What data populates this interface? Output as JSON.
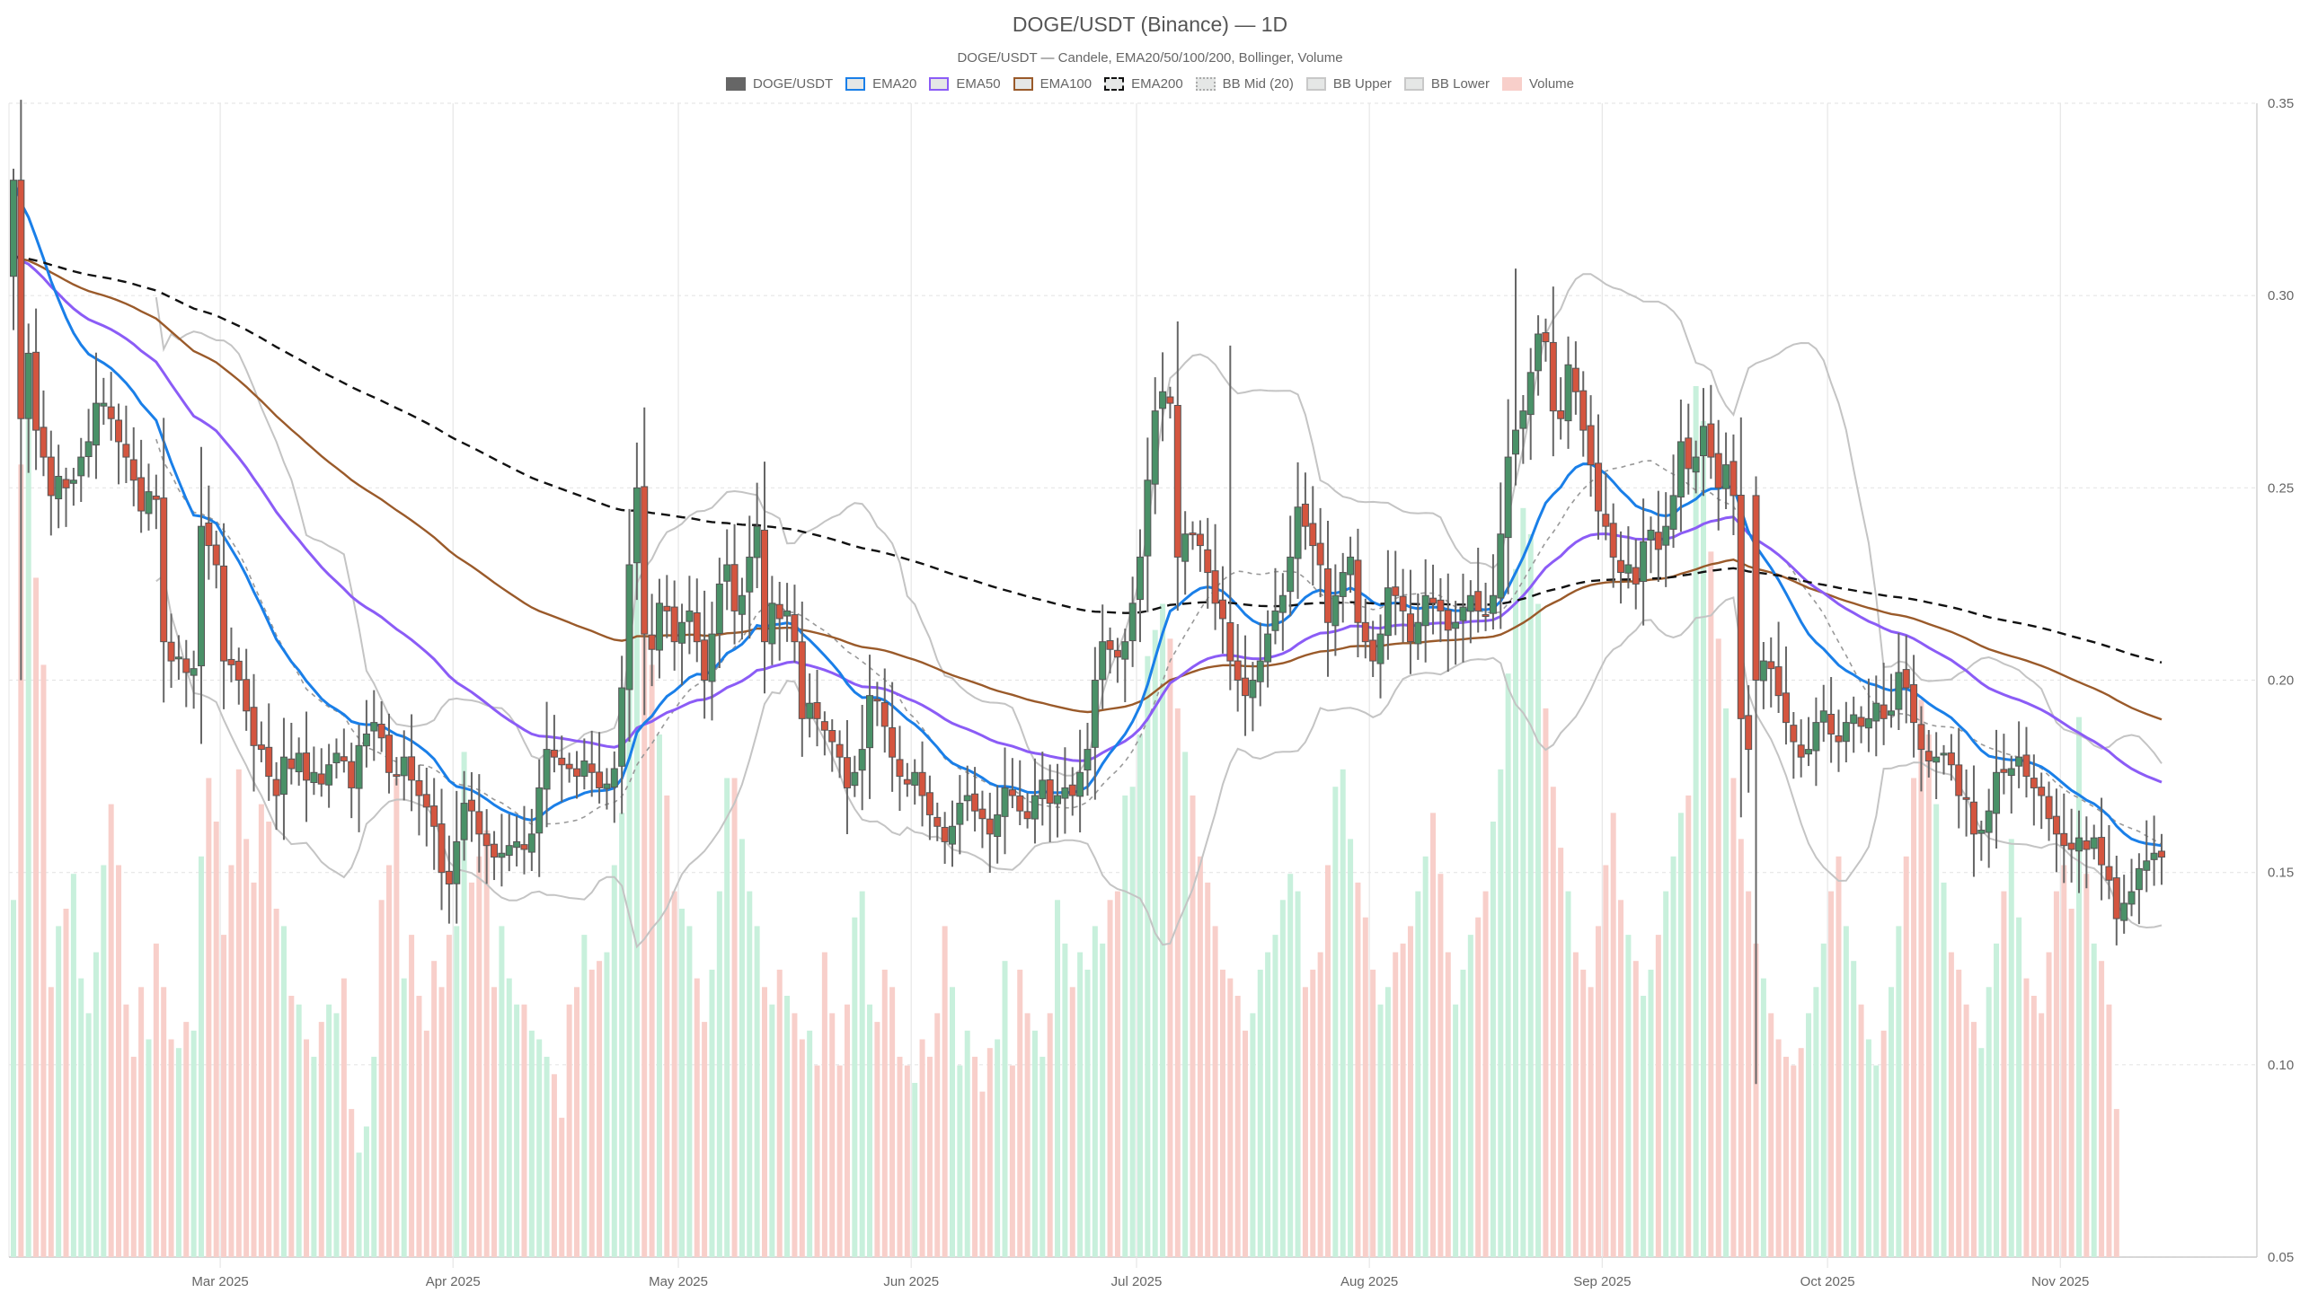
{
  "header": {
    "title": "DOGE/USDT (Binance) — 1D",
    "subtitle": "DOGE/USDT — Candele, EMA20/50/100/200, Bollinger, Volume"
  },
  "legend": [
    {
      "label": "DOGE/USDT",
      "fill": "#666666",
      "border": "#666666",
      "style": "solid"
    },
    {
      "label": "EMA20",
      "fill": "#e5e7e6",
      "border": "#1a7fe8",
      "style": "solid"
    },
    {
      "label": "EMA50",
      "fill": "#e5e7e6",
      "border": "#8b5cf6",
      "style": "solid"
    },
    {
      "label": "EMA100",
      "fill": "#e5e7e6",
      "border": "#9a5a2a",
      "style": "solid"
    },
    {
      "label": "EMA200",
      "fill": "#e5e7e6",
      "border": "#111111",
      "style": "dashed"
    },
    {
      "label": "BB Mid (20)",
      "fill": "#e5e7e6",
      "border": "#aaaaaa",
      "style": "dotted"
    },
    {
      "label": "BB Upper",
      "fill": "#e5e7e6",
      "border": "#c8c8c8",
      "style": "solid"
    },
    {
      "label": "BB Lower",
      "fill": "#e5e7e6",
      "border": "#c8c8c8",
      "style": "solid"
    },
    {
      "label": "Volume",
      "fill": "#f8cfca",
      "border": "#f8cfca",
      "style": "solid"
    }
  ],
  "colors": {
    "up": "#4a9168",
    "down": "#d4553f",
    "wick": "#666666",
    "vol_up": "#c8f0dc",
    "vol_down": "#f8cfca",
    "ema20": "#1a7fe8",
    "ema50": "#8b5cf6",
    "ema100": "#9a5a2a",
    "ema200": "#111111",
    "bb_mid": "#999999",
    "bb_band": "#c4c4c4",
    "grid": "#e6e6e6"
  },
  "chart_data": {
    "type": "candlestick",
    "title": "DOGE/USDT (Binance) — 1D",
    "subtitle": "DOGE/USDT — Candele, EMA20/50/100/200, Bollinger, Volume",
    "xlabel": "",
    "ylabel": "",
    "ylim": [
      0.05,
      0.35
    ],
    "y_ticks": [
      "0.35",
      "0.30",
      "0.25",
      "0.20",
      "0.15",
      "0.10",
      "0.05"
    ],
    "x_ticks": [
      "Mar 2025",
      "Apr 2025",
      "May 2025",
      "Jun 2025",
      "Jul 2025",
      "Aug 2025",
      "Sep 2025",
      "Oct 2025",
      "Nov 2025"
    ],
    "grid": true,
    "legend_position": "top",
    "series": [
      {
        "name": "DOGE/USDT",
        "kind": "candlestick"
      },
      {
        "name": "EMA20",
        "kind": "line"
      },
      {
        "name": "EMA50",
        "kind": "line"
      },
      {
        "name": "EMA100",
        "kind": "line"
      },
      {
        "name": "EMA200",
        "kind": "line"
      },
      {
        "name": "BB Mid (20)",
        "kind": "line"
      },
      {
        "name": "BB Upper",
        "kind": "line"
      },
      {
        "name": "BB Lower",
        "kind": "line"
      },
      {
        "name": "Volume",
        "kind": "bar"
      }
    ],
    "start_date": "2025-02-01",
    "close_path": [
      0.33,
      0.268,
      0.285,
      0.265,
      0.258,
      0.248,
      0.253,
      0.25,
      0.252,
      0.258,
      0.262,
      0.272,
      0.272,
      0.268,
      0.262,
      0.258,
      0.252,
      0.244,
      0.249,
      0.247,
      0.21,
      0.205,
      0.206,
      0.202,
      0.203,
      0.24,
      0.235,
      0.23,
      0.205,
      0.204,
      0.2,
      0.192,
      0.183,
      0.182,
      0.175,
      0.17,
      0.18,
      0.177,
      0.181,
      0.174,
      0.176,
      0.173,
      0.178,
      0.181,
      0.179,
      0.172,
      0.183,
      0.186,
      0.189,
      0.185,
      0.176,
      0.175,
      0.18,
      0.174,
      0.17,
      0.167,
      0.162,
      0.15,
      0.147,
      0.158,
      0.168,
      0.166,
      0.16,
      0.157,
      0.154,
      0.155,
      0.157,
      0.158,
      0.156,
      0.16,
      0.172,
      0.182,
      0.18,
      0.178,
      0.177,
      0.175,
      0.179,
      0.176,
      0.172,
      0.173,
      0.177,
      0.198,
      0.23,
      0.25,
      0.212,
      0.208,
      0.22,
      0.218,
      0.21,
      0.215,
      0.218,
      0.21,
      0.2,
      0.212,
      0.225,
      0.23,
      0.218,
      0.222,
      0.232,
      0.24,
      0.21,
      0.22,
      0.216,
      0.218,
      0.21,
      0.19,
      0.194,
      0.19,
      0.187,
      0.184,
      0.18,
      0.172,
      0.176,
      0.182,
      0.196,
      0.195,
      0.188,
      0.18,
      0.175,
      0.173,
      0.176,
      0.17,
      0.165,
      0.162,
      0.158,
      0.162,
      0.168,
      0.17,
      0.166,
      0.164,
      0.16,
      0.165,
      0.172,
      0.17,
      0.166,
      0.164,
      0.17,
      0.174,
      0.168,
      0.17,
      0.172,
      0.17,
      0.176,
      0.182,
      0.2,
      0.21,
      0.208,
      0.206,
      0.21,
      0.22,
      0.232,
      0.252,
      0.27,
      0.275,
      0.272,
      0.232,
      0.238,
      0.238,
      0.235,
      0.228,
      0.22,
      0.216,
      0.205,
      0.2,
      0.196,
      0.2,
      0.205,
      0.212,
      0.218,
      0.222,
      0.232,
      0.245,
      0.24,
      0.235,
      0.23,
      0.215,
      0.222,
      0.228,
      0.232,
      0.215,
      0.21,
      0.205,
      0.212,
      0.224,
      0.222,
      0.218,
      0.21,
      0.215,
      0.222,
      0.22,
      0.218,
      0.213,
      0.215,
      0.219,
      0.222,
      0.218,
      0.217,
      0.222,
      0.238,
      0.258,
      0.265,
      0.27,
      0.28,
      0.29,
      0.288,
      0.27,
      0.268,
      0.282,
      0.275,
      0.265,
      0.256,
      0.244,
      0.24,
      0.232,
      0.228,
      0.23,
      0.225,
      0.236,
      0.239,
      0.234,
      0.24,
      0.248,
      0.262,
      0.255,
      0.258,
      0.266,
      0.258,
      0.25,
      0.256,
      0.248,
      0.19,
      0.182,
      0.2,
      0.205,
      0.203,
      0.196,
      0.189,
      0.184,
      0.18,
      0.182,
      0.189,
      0.192,
      0.186,
      0.184,
      0.189,
      0.191,
      0.188,
      0.19,
      0.194,
      0.19,
      0.192,
      0.202,
      0.198,
      0.189,
      0.182,
      0.179,
      0.18,
      0.181,
      0.178,
      0.17,
      0.169,
      0.16,
      0.161,
      0.166,
      0.176,
      0.176,
      0.177,
      0.18,
      0.175,
      0.172,
      0.17,
      0.164,
      0.16,
      0.157,
      0.156,
      0.159,
      0.156,
      0.159,
      0.152,
      0.148,
      0.138,
      0.142,
      0.145,
      0.151,
      0.153,
      0.155,
      0.154
    ],
    "volume_relative": [
      0.41,
      0.91,
      0.99,
      0.78,
      0.68,
      0.31,
      0.38,
      0.4,
      0.44,
      0.32,
      0.28,
      0.35,
      0.45,
      0.52,
      0.45,
      0.29,
      0.23,
      0.31,
      0.25,
      0.36,
      0.31,
      0.25,
      0.24,
      0.27,
      0.26,
      0.46,
      0.55,
      0.5,
      0.37,
      0.45,
      0.56,
      0.48,
      0.43,
      0.52,
      0.5,
      0.4,
      0.38,
      0.3,
      0.29,
      0.25,
      0.23,
      0.27,
      0.29,
      0.28,
      0.32,
      0.17,
      0.12,
      0.15,
      0.23,
      0.41,
      0.45,
      0.55,
      0.32,
      0.37,
      0.3,
      0.26,
      0.34,
      0.31,
      0.37,
      0.38,
      0.58,
      0.43,
      0.46,
      0.49,
      0.31,
      0.38,
      0.32,
      0.29,
      0.29,
      0.26,
      0.25,
      0.23,
      0.21,
      0.16,
      0.29,
      0.31,
      0.37,
      0.33,
      0.34,
      0.35,
      0.45,
      0.51,
      0.74,
      0.8,
      0.73,
      0.68,
      0.6,
      0.53,
      0.42,
      0.4,
      0.38,
      0.32,
      0.27,
      0.33,
      0.42,
      0.55,
      0.55,
      0.48,
      0.42,
      0.38,
      0.31,
      0.29,
      0.33,
      0.3,
      0.28,
      0.25,
      0.26,
      0.22,
      0.35,
      0.28,
      0.22,
      0.29,
      0.39,
      0.42,
      0.29,
      0.27,
      0.33,
      0.31,
      0.23,
      0.22,
      0.2,
      0.25,
      0.23,
      0.28,
      0.38,
      0.31,
      0.22,
      0.26,
      0.23,
      0.19,
      0.24,
      0.25,
      0.34,
      0.22,
      0.33,
      0.28,
      0.26,
      0.23,
      0.28,
      0.41,
      0.36,
      0.31,
      0.35,
      0.33,
      0.38,
      0.36,
      0.41,
      0.42,
      0.53,
      0.54,
      0.6,
      0.69,
      0.72,
      0.75,
      0.71,
      0.63,
      0.58,
      0.53,
      0.46,
      0.43,
      0.38,
      0.33,
      0.32,
      0.3,
      0.26,
      0.28,
      0.33,
      0.35,
      0.37,
      0.41,
      0.44,
      0.42,
      0.31,
      0.33,
      0.35,
      0.45,
      0.54,
      0.56,
      0.48,
      0.43,
      0.39,
      0.33,
      0.29,
      0.31,
      0.35,
      0.36,
      0.38,
      0.42,
      0.46,
      0.51,
      0.44,
      0.35,
      0.29,
      0.33,
      0.37,
      0.39,
      0.42,
      0.5,
      0.56,
      0.67,
      0.79,
      0.86,
      0.83,
      0.75,
      0.63,
      0.54,
      0.47,
      0.42,
      0.35,
      0.33,
      0.31,
      0.38,
      0.45,
      0.51,
      0.41,
      0.37,
      0.34,
      0.3,
      0.33,
      0.37,
      0.42,
      0.46,
      0.51,
      0.53,
      1.0,
      0.96,
      0.81,
      0.71,
      0.63,
      0.55,
      0.48,
      0.42,
      0.36,
      0.32,
      0.28,
      0.25,
      0.23,
      0.22,
      0.24,
      0.28,
      0.31,
      0.36,
      0.42,
      0.46,
      0.38,
      0.34,
      0.29,
      0.25,
      0.22,
      0.26,
      0.31,
      0.38,
      0.46,
      0.55,
      0.64,
      0.6,
      0.52,
      0.43,
      0.35,
      0.33,
      0.29,
      0.27,
      0.24,
      0.31,
      0.36,
      0.42,
      0.48,
      0.39,
      0.32,
      0.3,
      0.28,
      0.35,
      0.42,
      0.45,
      0.4,
      0.62,
      0.44,
      0.36,
      0.34,
      0.29,
      0.17
    ]
  }
}
